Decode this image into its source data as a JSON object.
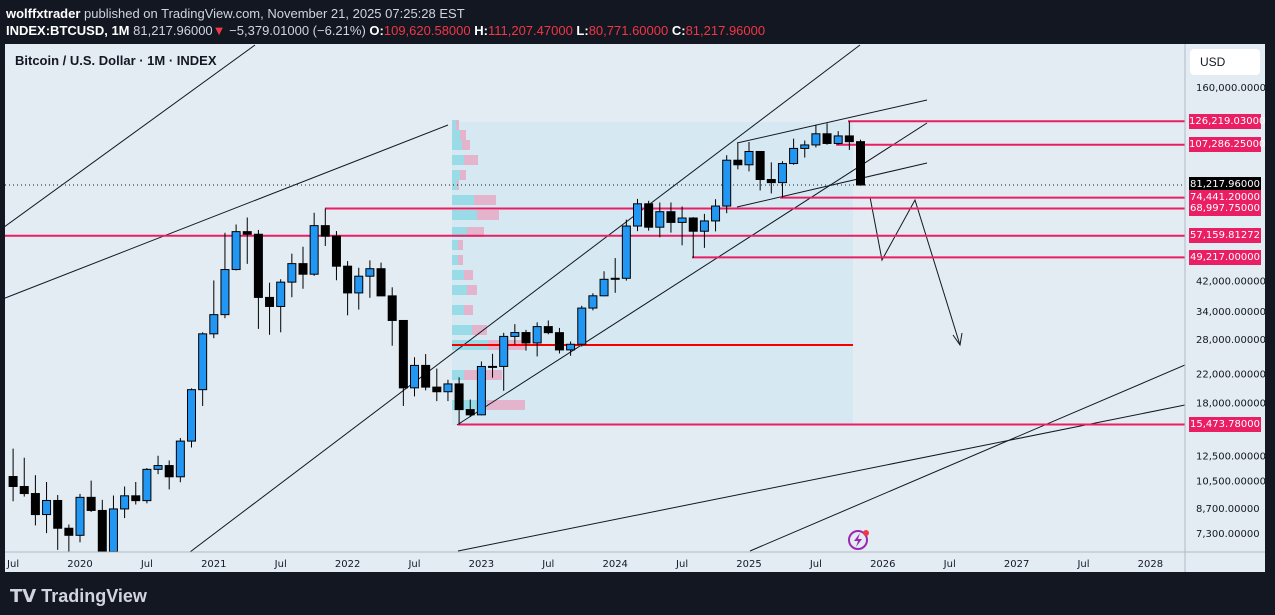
{
  "header": {
    "author": "wolffxtrader",
    "published": "published on TradingView.com, November 21, 2025 07:25:28 EST",
    "symbol": "INDEX:BTCUSD, 1M",
    "last": "81,217.96000",
    "change": "−5,379.01000 (−6.21%)",
    "o_label": "O:",
    "o": "109,620.58000",
    "h_label": "H:",
    "h": "111,207.47000",
    "l_label": "L:",
    "l": "80,771.60000",
    "c_label": "C:",
    "c": "81,217.96000"
  },
  "chart_title": "Bitcoin / U.S. Dollar · 1M · INDEX",
  "currency": "USD",
  "footer": "TradingView",
  "colors": {
    "up": "#2196f3",
    "down": "#000000",
    "level": "#e91e63",
    "bg": "#e3ebf3"
  },
  "chart_data": {
    "type": "candlestick",
    "scale": "log",
    "y_ticks": [
      160000,
      100000,
      64000,
      52000,
      42000,
      34000,
      28000,
      22000,
      18000,
      12500,
      10500,
      8700,
      7300
    ],
    "y_tick_labels": [
      "160,000.00000",
      "42,000.00000",
      "34,000.00000",
      "28,000.00000",
      "22,000.00000",
      "18,000.00000",
      "12,500.00000",
      "10,500.00000",
      "8,700.00000",
      "7,300.00000"
    ],
    "x_ticks": [
      "Jul",
      "2020",
      "Jul",
      "2021",
      "Jul",
      "2022",
      "Jul",
      "2023",
      "Jul",
      "2024",
      "Jul",
      "2025",
      "Jul",
      "2026",
      "Jul",
      "2027",
      "Jul",
      "2028"
    ],
    "last_price": "81,217.96000",
    "levels": [
      {
        "price": 126219.03,
        "label": "126,219.03000"
      },
      {
        "price": 107286.25,
        "label": "107,286.25000"
      },
      {
        "price": 74441.2,
        "label": "74,441.20000"
      },
      {
        "price": 68997.75,
        "label": "68,997.75000"
      },
      {
        "price": 57159.81272,
        "label": "57,159.81272"
      },
      {
        "price": 49217,
        "label": "49,217.00000"
      },
      {
        "price": 15473.78,
        "label": "15,473.78000"
      }
    ],
    "start": "2019-07",
    "ohlc": [
      [
        10800,
        13100,
        9100,
        10080
      ],
      [
        10080,
        12300,
        9400,
        9600
      ],
      [
        9600,
        10900,
        7700,
        8300
      ],
      [
        8300,
        10400,
        7300,
        9150
      ],
      [
        9150,
        9500,
        6500,
        7550
      ],
      [
        7550,
        7750,
        6430,
        7190
      ],
      [
        7190,
        9580,
        6850,
        9350
      ],
      [
        9350,
        10500,
        8450,
        8540
      ],
      [
        8540,
        9190,
        3850,
        6420
      ],
      [
        6420,
        9470,
        6150,
        8630
      ],
      [
        8630,
        10080,
        8100,
        9450
      ],
      [
        9450,
        10400,
        8900,
        9140
      ],
      [
        9140,
        11450,
        8970,
        11350
      ],
      [
        11350,
        12470,
        10980,
        11650
      ],
      [
        11650,
        12070,
        9880,
        10780
      ],
      [
        10780,
        14100,
        10380,
        13800
      ],
      [
        13800,
        19870,
        13200,
        19700
      ],
      [
        19700,
        29300,
        17600,
        28990
      ],
      [
        28990,
        41950,
        28130,
        33110
      ],
      [
        33110,
        58350,
        32300,
        45240
      ],
      [
        45240,
        61790,
        44950,
        58800
      ],
      [
        58800,
        64850,
        47050,
        57750
      ],
      [
        57750,
        59500,
        30000,
        37300
      ],
      [
        37300,
        41300,
        28800,
        35040
      ],
      [
        35040,
        42300,
        29300,
        41460
      ],
      [
        41460,
        50500,
        37350,
        47130
      ],
      [
        47130,
        52950,
        39600,
        43800
      ],
      [
        43800,
        67000,
        43300,
        61300
      ],
      [
        61300,
        69000,
        53250,
        57000
      ],
      [
        57000,
        59050,
        42000,
        46300
      ],
      [
        46300,
        47950,
        32950,
        38480
      ],
      [
        38480,
        45800,
        34300,
        43200
      ],
      [
        43200,
        48200,
        37200,
        45500
      ],
      [
        45500,
        47450,
        37700,
        37700
      ],
      [
        37700,
        40000,
        26700,
        31800
      ],
      [
        31800,
        31900,
        17600,
        19950
      ],
      [
        19950,
        24650,
        18800,
        23300
      ],
      [
        23300,
        25200,
        19600,
        20050
      ],
      [
        20050,
        22800,
        18200,
        19420
      ],
      [
        19420,
        21100,
        18200,
        20500
      ],
      [
        20500,
        21450,
        15480,
        17160
      ],
      [
        17160,
        18400,
        16300,
        16550
      ],
      [
        16550,
        23950,
        16500,
        23130
      ],
      [
        23130,
        25250,
        21400,
        23140
      ],
      [
        23140,
        29200,
        19550,
        28480
      ],
      [
        28480,
        31000,
        26950,
        29250
      ],
      [
        29250,
        29800,
        25800,
        27220
      ],
      [
        27220,
        31400,
        24800,
        30480
      ],
      [
        30480,
        31800,
        28900,
        29230
      ],
      [
        29230,
        30200,
        25300,
        25940
      ],
      [
        25940,
        27500,
        24900,
        26970
      ],
      [
        26970,
        35200,
        26550,
        34650
      ],
      [
        34650,
        38400,
        34100,
        37720
      ],
      [
        37720,
        44700,
        37600,
        42280
      ],
      [
        42280,
        48970,
        38500,
        42580
      ],
      [
        42580,
        63900,
        41900,
        61130
      ],
      [
        61130,
        73800,
        59000,
        71300
      ],
      [
        71300,
        72800,
        59200,
        60640
      ],
      [
        60640,
        71950,
        56550,
        67500
      ],
      [
        67500,
        71950,
        58400,
        62680
      ],
      [
        62680,
        70000,
        53500,
        64620
      ],
      [
        64620,
        65000,
        49050,
        58970
      ],
      [
        58970,
        66500,
        52550,
        63330
      ],
      [
        63330,
        73600,
        58900,
        70200
      ],
      [
        70200,
        99800,
        66800,
        96400
      ],
      [
        96400,
        108300,
        90500,
        93400
      ],
      [
        93400,
        109350,
        89200,
        102400
      ],
      [
        102400,
        102750,
        78200,
        84350
      ],
      [
        84350,
        95000,
        76600,
        82550
      ],
      [
        82550,
        95750,
        74440,
        94200
      ],
      [
        94200,
        111950,
        93400,
        104600
      ],
      [
        104600,
        110500,
        98200,
        107150
      ],
      [
        107150,
        123200,
        105300,
        115750
      ],
      [
        115750,
        124500,
        107300,
        108250
      ],
      [
        108250,
        117900,
        107250,
        114050
      ],
      [
        114050,
        126200,
        103500,
        109620
      ],
      [
        109620,
        111207,
        80771,
        81218
      ]
    ]
  }
}
